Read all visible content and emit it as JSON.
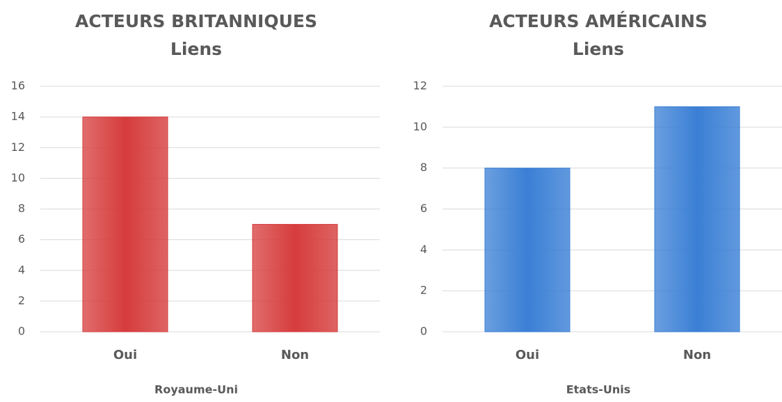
{
  "chart_data": [
    {
      "type": "bar",
      "title": "ACTEURS BRITANNIQUES",
      "subtitle": "Liens",
      "categories": [
        "Oui",
        "Non"
      ],
      "values": [
        14,
        7
      ],
      "color": "#d63c3c",
      "ylim": [
        0,
        16
      ],
      "yticks": [
        0,
        2,
        4,
        6,
        8,
        10,
        12,
        14,
        16
      ],
      "grid": true,
      "x_label": "Royaume-Uni"
    },
    {
      "type": "bar",
      "title": "ACTEURS AMÉRICAINS",
      "subtitle": "Liens",
      "categories": [
        "Oui",
        "Non"
      ],
      "values": [
        8,
        11
      ],
      "color": "#3a7fd5",
      "ylim": [
        0,
        12
      ],
      "yticks": [
        0,
        2,
        4,
        6,
        8,
        10,
        12
      ],
      "grid": true,
      "x_label": "Etats-Unis"
    }
  ]
}
